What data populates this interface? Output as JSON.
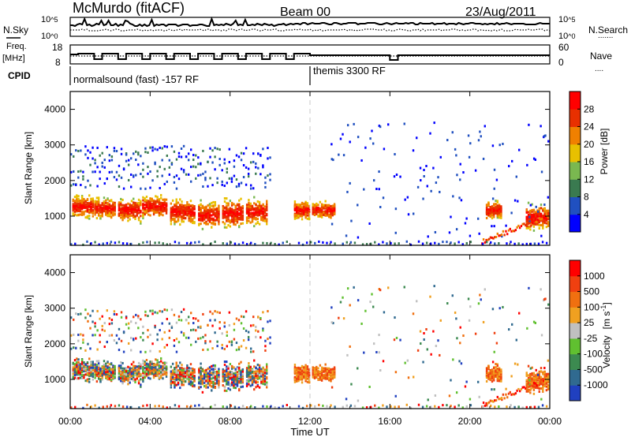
{
  "header": {
    "station": "McMurdo (fitACF)",
    "beam": "Beam 00",
    "date": "23/Aug/2011"
  },
  "noise_panel": {
    "left_label": "N.Sky",
    "right_label": "N.Search",
    "left_ticks": [
      {
        "base": "10",
        "exp": "^5"
      },
      {
        "base": "10",
        "exp": "^0"
      }
    ],
    "right_ticks": [
      {
        "base": "10",
        "exp": "^5"
      },
      {
        "base": "10",
        "exp": "^0"
      }
    ],
    "search_line_legend": "......."
  },
  "freq_panel": {
    "left_label_1": "Freq.",
    "left_label_2": "[MHz]",
    "left_ticks": [
      "18",
      "8"
    ],
    "right_label": "Nave",
    "right_ticks": [
      "60",
      "0"
    ],
    "nave_line_legend": "...."
  },
  "cpid": {
    "label": "CPID",
    "segments": [
      {
        "name": "normalsound (fast) -157 RF",
        "start_hour": 0
      },
      {
        "name": "themis 3300 RF",
        "start_hour": 12
      }
    ]
  },
  "x_axis": {
    "label": "Time UT",
    "ticks": [
      "00:00",
      "04:00",
      "08:00",
      "12:00",
      "16:00",
      "20:00",
      "00:00"
    ]
  },
  "chart_data": [
    {
      "type": "heatmap",
      "title": "",
      "quantity": "Power",
      "xlabel": "Time UT",
      "ylabel": "Slant Range [km]",
      "xlim_hours": [
        0,
        24
      ],
      "ylim": [
        180,
        4500
      ],
      "yticks": [
        "4000",
        "3000",
        "2000",
        "1000"
      ],
      "colorbar": {
        "label": "Power [dB]",
        "ticks": [
          "28",
          "24",
          "20",
          "16",
          "12",
          "8",
          "4"
        ],
        "colors": [
          "#0000ff",
          "#2050c0",
          "#3a7a50",
          "#7ab850",
          "#e8c000",
          "#f08000",
          "#e83000",
          "#ff0000"
        ]
      }
    },
    {
      "type": "heatmap",
      "title": "",
      "quantity": "Velocity",
      "xlabel": "Time UT",
      "ylabel": "Slant Range [km]",
      "xlim_hours": [
        0,
        24
      ],
      "ylim": [
        180,
        4500
      ],
      "yticks": [
        "4000",
        "3000",
        "2000",
        "1000"
      ],
      "colorbar": {
        "label": "Velocity",
        "unit_base": "[m s",
        "unit_exp": "-1",
        "unit_close": "]",
        "ticks": [
          "1000",
          "500",
          "100",
          "25",
          "-25",
          "-100",
          "-500",
          "-1000"
        ],
        "colors": [
          "#2040c0",
          "#306a90",
          "#3c8a50",
          "#60c030",
          "#c0c0c0",
          "#f0a020",
          "#f07010",
          "#f04010",
          "#ff0000"
        ]
      }
    }
  ]
}
